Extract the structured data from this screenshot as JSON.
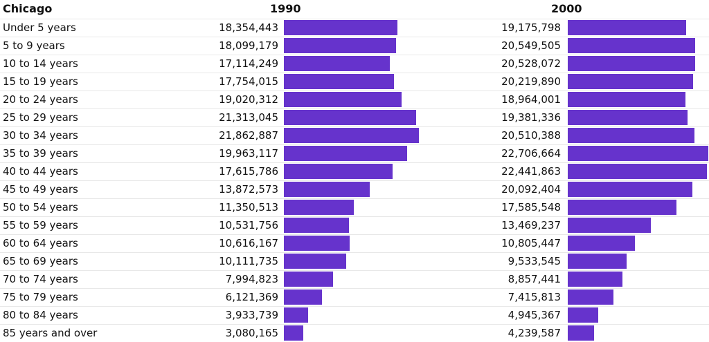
{
  "chart_data": {
    "type": "bar",
    "title": "Chicago",
    "series": [
      {
        "name": "1990",
        "values": [
          18354443,
          18099179,
          17114249,
          17754015,
          19020312,
          21313045,
          21862887,
          19963117,
          17615786,
          13872573,
          11350513,
          10531756,
          10616167,
          10111735,
          7994823,
          6121369,
          3933739,
          3080165
        ]
      },
      {
        "name": "2000",
        "values": [
          19175798,
          20549505,
          20528072,
          20219890,
          18964001,
          19381336,
          20510388,
          22706664,
          22441863,
          20092404,
          17585548,
          13469237,
          10805447,
          9533545,
          8857441,
          7415813,
          4945367,
          4239587
        ]
      }
    ],
    "categories": [
      "Under 5 years",
      "5 to 9 years",
      "10 to 14 years",
      "15 to 19 years",
      "20 to 24 years",
      "25 to 29 years",
      "30 to 34 years",
      "35 to 39 years",
      "40 to 44 years",
      "45 to 49 years",
      "50 to 54 years",
      "55 to 59 years",
      "60 to 64 years",
      "65 to 69 years",
      "70 to 74 years",
      "75 to 79 years",
      "80 to 84 years",
      "85 years and over"
    ],
    "value_labels": [
      [
        "18,354,443",
        "18,099,179",
        "17,114,249",
        "17,754,015",
        "19,020,312",
        "21,313,045",
        "21,862,887",
        "19,963,117",
        "17,615,786",
        "13,872,573",
        "11,350,513",
        "10,531,756",
        "10,616,167",
        "10,111,735",
        "7,994,823",
        "6,121,369",
        "3,933,739",
        "3,080,165"
      ],
      [
        "19,175,798",
        "20,549,505",
        "20,528,072",
        "20,219,890",
        "18,964,001",
        "19,381,336",
        "20,510,388",
        "22,706,664",
        "22,441,863",
        "20,092,404",
        "17,585,548",
        "13,469,237",
        "10,805,447",
        "9,533,545",
        "8,857,441",
        "7,415,813",
        "4,945,367",
        "4,239,587"
      ]
    ],
    "colors": {
      "bar": "#6633cc"
    },
    "legend": "none",
    "grid": false
  }
}
